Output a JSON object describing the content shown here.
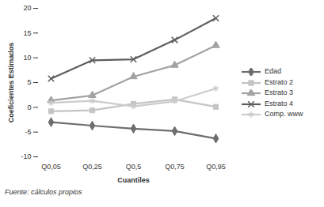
{
  "chart_data": {
    "type": "line",
    "x_label": "Cuantiles",
    "y_label": "Coeficientes Estimados",
    "caption": "Fuente: cálculos propios",
    "categories": [
      "Q0,05",
      "Q0,25",
      "Q0,5",
      "Q0,75",
      "Q0,95"
    ],
    "ylim": [
      -10,
      20
    ],
    "yticks": [
      -10,
      -5,
      0,
      5,
      10,
      15,
      20
    ],
    "grid": false,
    "legend": "right",
    "series": [
      {
        "name": "Edad",
        "color": "#6e6e6e",
        "marker": "diamond",
        "values": [
          -3,
          -3.7,
          -4.3,
          -4.8,
          -6.3
        ]
      },
      {
        "name": "Estrato 2",
        "color": "#c4c4c4",
        "marker": "square",
        "values": [
          -0.8,
          -0.6,
          0.7,
          1.6,
          0.1
        ]
      },
      {
        "name": "Estrato 3",
        "color": "#a3a3a3",
        "marker": "triangle",
        "values": [
          1.4,
          2.4,
          6.2,
          8.5,
          12.5
        ]
      },
      {
        "name": "Estrato 4",
        "color": "#5e5e5e",
        "marker": "times",
        "values": [
          5.8,
          9.5,
          9.7,
          13.6,
          18
        ]
      },
      {
        "name": "Comp. www",
        "color": "#cccccc",
        "marker": "asterisk",
        "values": [
          0.9,
          1.3,
          0.2,
          1.2,
          3.8
        ]
      }
    ]
  }
}
